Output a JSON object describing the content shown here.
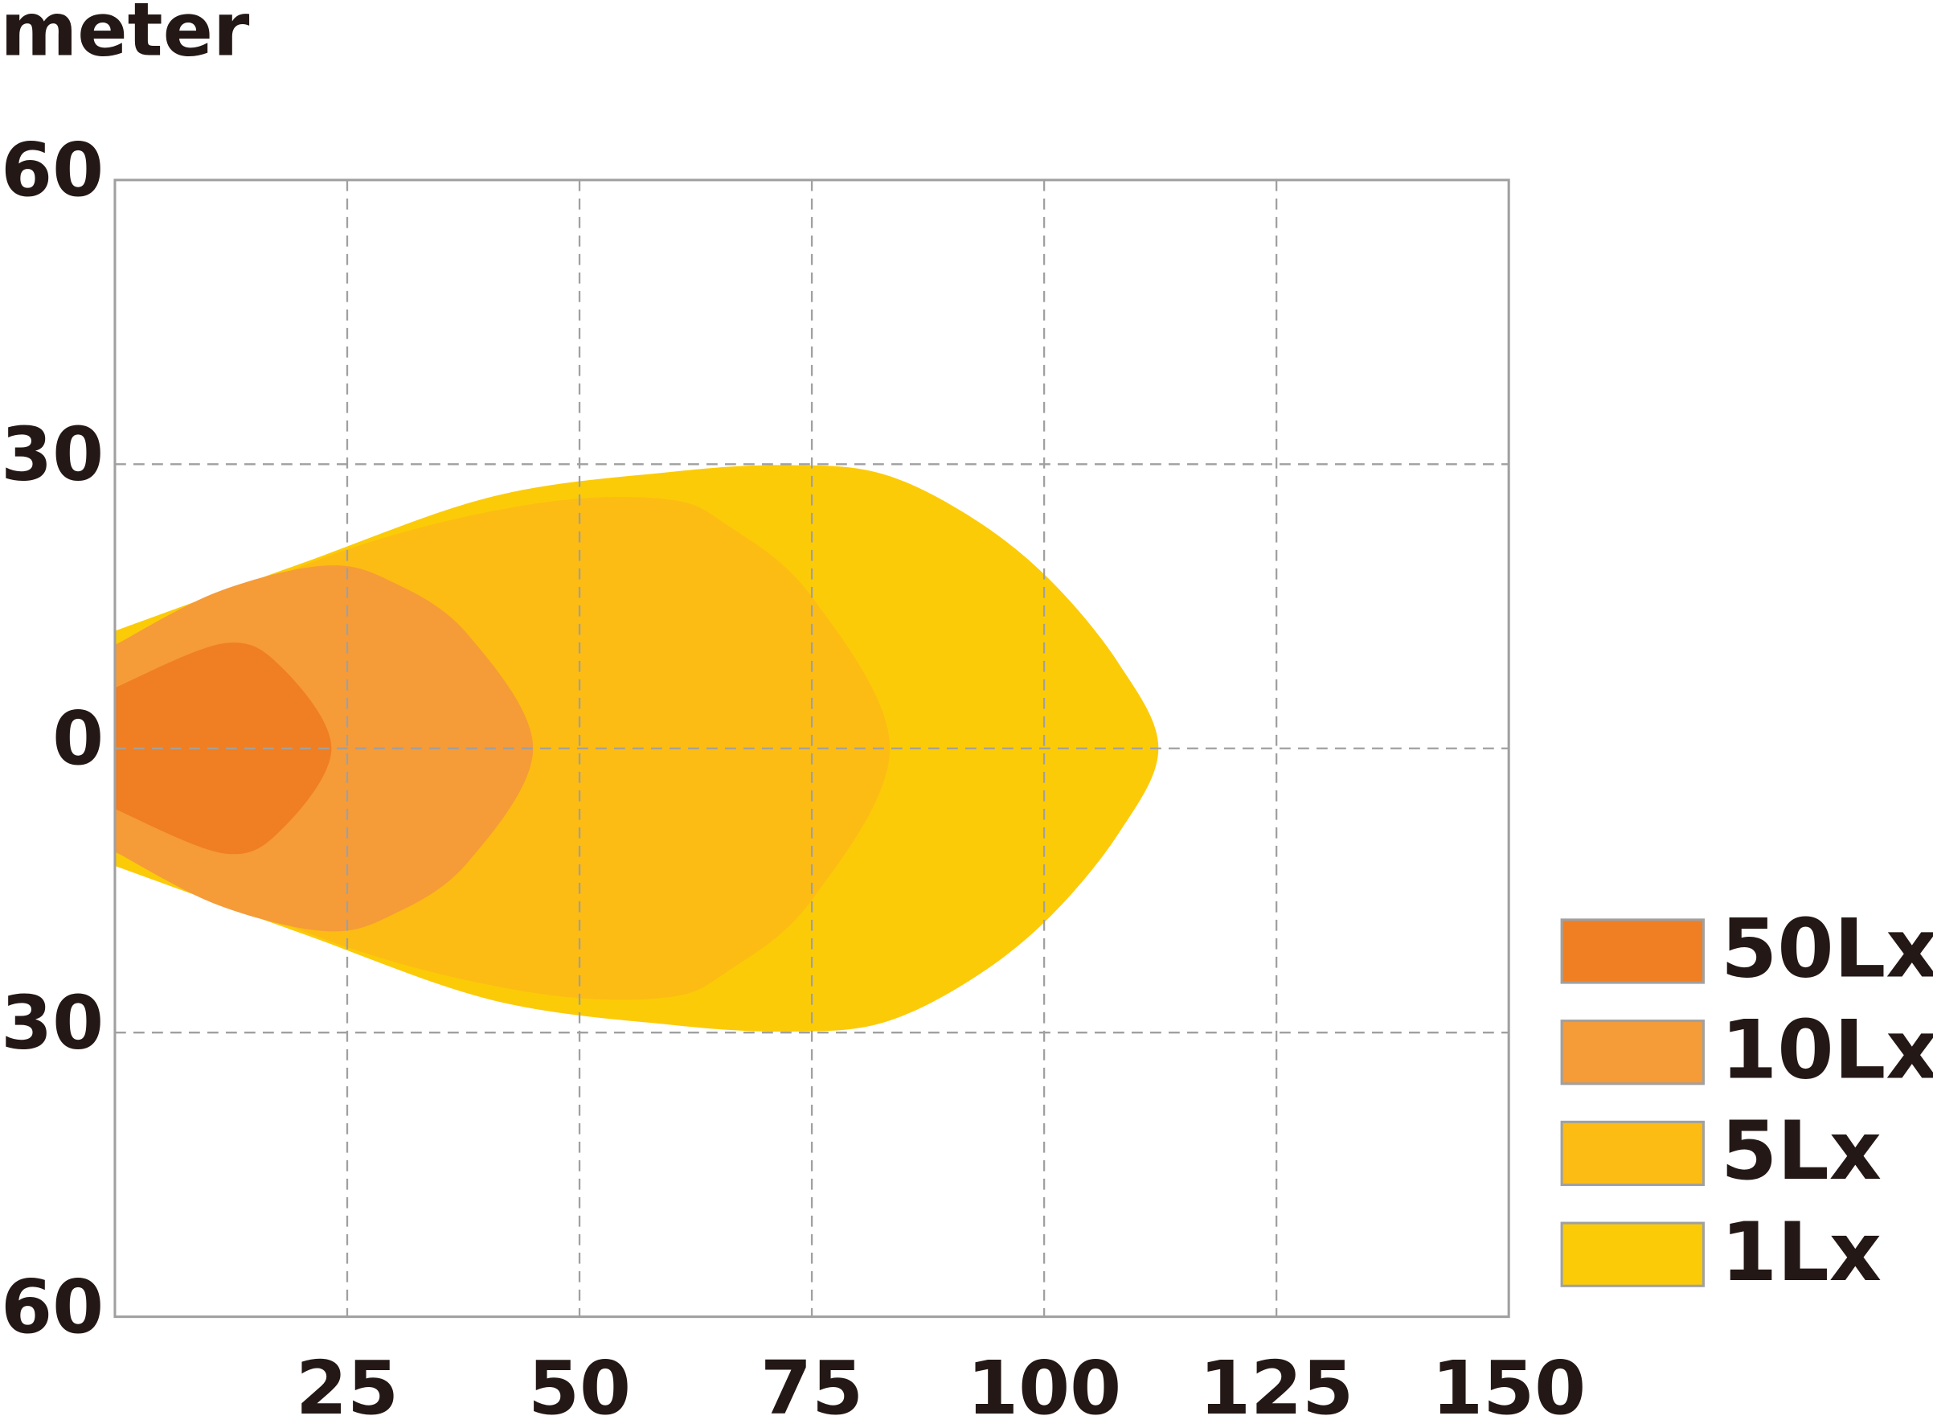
{
  "chart_data": {
    "type": "area",
    "y_label": "meter",
    "xlim": [
      0,
      150
    ],
    "ylim": [
      -60,
      60
    ],
    "xticks": [
      25,
      50,
      75,
      100,
      125,
      150
    ],
    "yticks": [
      {
        "value": -60,
        "label": "60"
      },
      {
        "value": -30,
        "label": "30"
      },
      0,
      30,
      60
    ],
    "grid": true,
    "legend": "right",
    "series": [
      {
        "name": "50Lx",
        "color": "#f07e22",
        "x": [
          0,
          11.8,
          18,
          23.3,
          18,
          11.8,
          0
        ],
        "values": [
          6.4,
          11.1,
          8.5,
          0,
          -8.5,
          -11.1,
          -6.4
        ]
      },
      {
        "name": "10Lx",
        "color": "#f59b38",
        "x": [
          0,
          11,
          22.7,
          30,
          38,
          45,
          38,
          30,
          22.7,
          11,
          0
        ],
        "values": [
          10.9,
          16.5,
          19.3,
          17.5,
          12,
          0,
          -12,
          -17.5,
          -19.3,
          -16.5,
          -10.9
        ]
      },
      {
        "name": "5Lx",
        "color": "#fcbc14",
        "x": [
          0,
          25,
          45,
          59.3,
          66,
          75,
          83.4,
          75,
          66,
          59.3,
          45,
          25,
          0
        ],
        "values": [
          11,
          21,
          25.8,
          26.3,
          23.5,
          16,
          0,
          -16,
          -23.5,
          -26.3,
          -25.8,
          -21,
          -11
        ]
      },
      {
        "name": "1Lx",
        "color": "#fccb08",
        "x": [
          0,
          20,
          40.7,
          60,
          72.5,
          82.5,
          92,
          100.4,
          108,
          112.3,
          108,
          100.4,
          92,
          82.5,
          72.5,
          60,
          40.7,
          20,
          0
        ],
        "values": [
          12.4,
          19.5,
          26.6,
          29.2,
          29.9,
          29,
          24.5,
          18,
          9,
          0,
          -9,
          -18,
          -24.5,
          -29,
          -29.9,
          -29.2,
          -26.6,
          -19.5,
          -12.4
        ]
      }
    ]
  }
}
